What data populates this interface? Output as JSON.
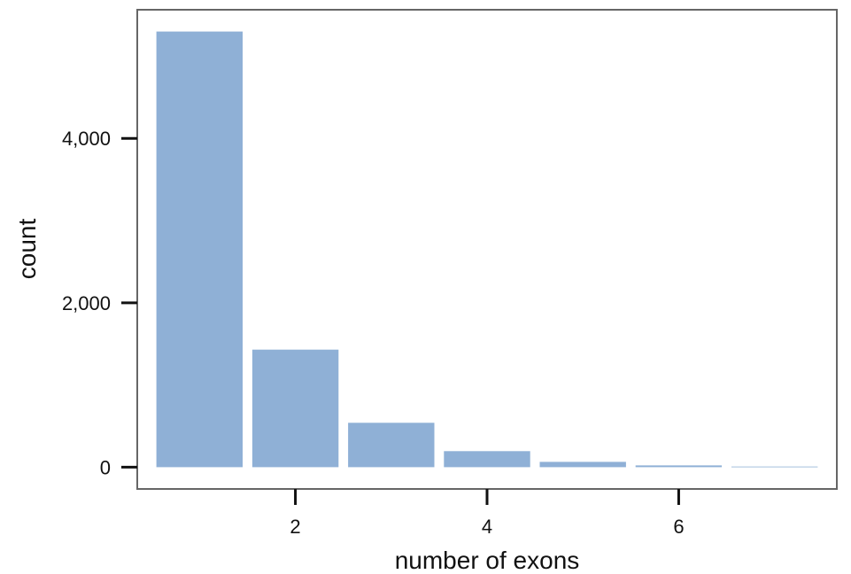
{
  "chart_data": {
    "type": "bar",
    "x": [
      1,
      2,
      3,
      4,
      5,
      6,
      7
    ],
    "values": [
      5300,
      1430,
      540,
      195,
      65,
      22,
      8
    ],
    "xlabel": "number of exons",
    "ylabel": "count",
    "x_ticks": [
      {
        "value": 2,
        "label": "2"
      },
      {
        "value": 4,
        "label": "4"
      },
      {
        "value": 6,
        "label": "6"
      }
    ],
    "y_ticks": [
      {
        "value": 0,
        "label": "0"
      },
      {
        "value": 2000,
        "label": "2,000"
      },
      {
        "value": 4000,
        "label": "4,000"
      }
    ],
    "xlim": [
      0.35,
      7.65
    ],
    "ylim": [
      -265,
      5565
    ],
    "grid": false,
    "legend": "none",
    "bar_color": "#8fb0d6",
    "panel_border_color": "#666666",
    "axis_color": "#111111"
  }
}
